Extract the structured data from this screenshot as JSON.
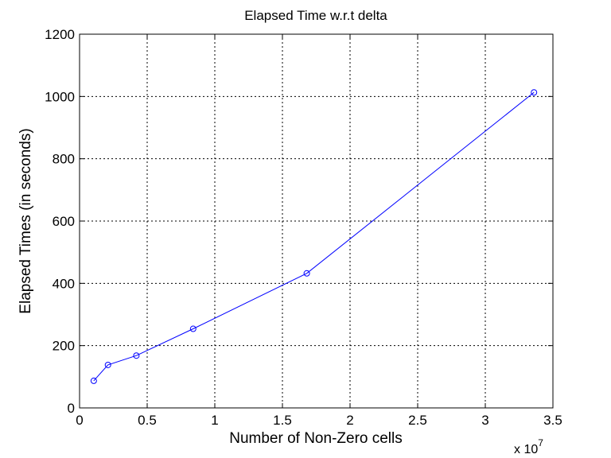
{
  "chart_data": {
    "type": "line",
    "title": "Elapsed Time w.r.t delta",
    "xlabel": "Number of Non-Zero cells",
    "ylabel": "Elapsed Times (in seconds)",
    "x_multiplier": {
      "base": "x 10",
      "exponent": "7"
    },
    "xlim": [
      0,
      3.5
    ],
    "ylim": [
      0,
      1200
    ],
    "x_ticks": [
      0,
      0.5,
      1,
      1.5,
      2,
      2.5,
      3,
      3.5
    ],
    "x_tick_labels": [
      "0",
      "0.5",
      "1",
      "1.5",
      "2",
      "2.5",
      "3",
      "3.5"
    ],
    "y_ticks": [
      0,
      200,
      400,
      600,
      800,
      1000,
      1200
    ],
    "y_tick_labels": [
      "0",
      "200",
      "400",
      "600",
      "800",
      "1000",
      "1200"
    ],
    "grid": true,
    "grid_style": "dotted",
    "marker": "circle",
    "colors": {
      "line": "#0000ff",
      "axes": "#000000",
      "grid": "#000000",
      "background": "#ffffff"
    },
    "series": [
      {
        "x": [
          0.105,
          0.21,
          0.42,
          0.84,
          1.68,
          3.36
        ],
        "y": [
          87,
          138,
          168,
          254,
          432,
          1013
        ]
      }
    ]
  }
}
